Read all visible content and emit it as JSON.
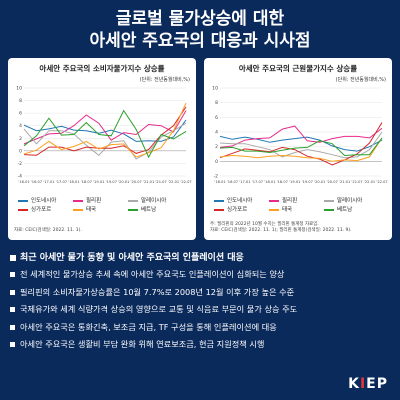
{
  "title": {
    "line1": "글로벌 물가상승에 대한",
    "line2": "아세안 주요국의 대응과 시사점"
  },
  "colors": {
    "background": "#0b2a5c",
    "series": [
      "#1f77b4",
      "#e7298a",
      "#aaaaaa",
      "#d62728",
      "#ff9f1c",
      "#2ca02c"
    ]
  },
  "chart_data": [
    {
      "type": "line",
      "title": "아세안 주요국의 소비자물가지수 상승률",
      "unit": "(단위: 전년동월대비,%)",
      "x": [
        "'16.01",
        "'16.07",
        "'17.01",
        "'17.07",
        "'18.01",
        "'18.07",
        "'19.01",
        "'19.07",
        "'20.01",
        "'20.07",
        "'21.01",
        "'21.07",
        "'22.01",
        "'22.07"
      ],
      "ylim": [
        -4,
        10
      ],
      "yticks": [
        -4,
        -2,
        0,
        2,
        4,
        6,
        8,
        10
      ],
      "legend_position": "bottom",
      "series": [
        {
          "name": "인도네시아",
          "values": [
            4.1,
            3.2,
            3.5,
            3.9,
            3.3,
            3.2,
            2.8,
            3.3,
            2.7,
            1.5,
            1.6,
            1.5,
            2.2,
            4.9
          ]
        },
        {
          "name": "필리핀",
          "values": [
            1.1,
            1.9,
            2.7,
            2.8,
            4.0,
            5.7,
            4.4,
            1.7,
            2.9,
            2.6,
            4.2,
            4.0,
            3.0,
            6.4
          ]
        },
        {
          "name": "말레이시아",
          "values": [
            3.5,
            1.1,
            3.2,
            3.2,
            2.7,
            0.9,
            -0.7,
            1.4,
            1.6,
            -1.3,
            -0.2,
            2.2,
            3.2,
            4.4
          ]
        },
        {
          "name": "싱가포르",
          "values": [
            -0.6,
            -0.7,
            0.6,
            0.6,
            0.0,
            0.6,
            0.4,
            0.4,
            0.8,
            -0.4,
            0.2,
            2.5,
            4.0,
            7.0
          ]
        },
        {
          "name": "태국",
          "values": [
            -0.5,
            0.1,
            1.5,
            0.2,
            0.7,
            1.5,
            0.3,
            1.0,
            1.1,
            -1.0,
            -0.3,
            0.5,
            3.2,
            7.6
          ]
        },
        {
          "name": "베트남",
          "values": [
            0.8,
            2.4,
            5.2,
            2.5,
            2.6,
            4.5,
            2.6,
            2.4,
            6.4,
            3.4,
            -1.0,
            2.6,
            1.9,
            3.1
          ]
        }
      ],
      "source": "자료: CEIC(검색일: 2022. 11. 1)."
    },
    {
      "type": "line",
      "title": "아세안 주요국의 근원물가지수 상승률",
      "unit": "(단위: 전년동월대비,%)",
      "x": [
        "'16.01",
        "'16.07",
        "'17.01",
        "'17.07",
        "'18.01",
        "'18.07",
        "'19.01",
        "'19.07",
        "'20.01",
        "'20.07",
        "'21.01",
        "'21.07",
        "'22.01",
        "'22.07"
      ],
      "ylim": [
        -2,
        10
      ],
      "yticks": [
        -2,
        0,
        2,
        4,
        6,
        8,
        10
      ],
      "legend_position": "bottom",
      "series": [
        {
          "name": "인도네시아",
          "values": [
            3.4,
            3.0,
            3.3,
            3.0,
            2.6,
            2.9,
            3.1,
            3.3,
            2.9,
            2.1,
            1.6,
            1.4,
            2.0,
            2.9
          ]
        },
        {
          "name": "필리핀",
          "values": [
            1.9,
            2.1,
            2.9,
            3.1,
            3.2,
            4.4,
            4.8,
            2.8,
            2.6,
            3.1,
            3.4,
            3.4,
            3.2,
            4.5
          ]
        },
        {
          "name": "말레이시아",
          "values": [
            2.5,
            2.4,
            2.4,
            2.0,
            1.6,
            0.6,
            1.2,
            1.6,
            1.3,
            0.9,
            0.5,
            0.6,
            1.6,
            4.0
          ]
        },
        {
          "name": "싱가포르",
          "values": [
            0.5,
            1.1,
            1.7,
            1.5,
            1.3,
            1.9,
            1.6,
            0.7,
            0.3,
            -0.5,
            0.2,
            1.0,
            2.5,
            5.3
          ]
        },
        {
          "name": "태국",
          "values": [
            0.6,
            0.8,
            0.7,
            0.5,
            0.7,
            0.8,
            0.7,
            0.5,
            0.4,
            0.0,
            0.2,
            0.1,
            0.6,
            3.2
          ]
        },
        {
          "name": "베트남",
          "values": [
            1.8,
            1.9,
            1.4,
            1.4,
            1.2,
            1.5,
            1.8,
            1.9,
            2.8,
            2.4,
            0.8,
            0.9,
            0.9,
            3.2
          ]
        }
      ],
      "source": "주: 필리핀의 2022년 10월 수치는 필리핀 통계청 자료임.\n자료: CEIC(검색일: 2022. 11. 1); 필리핀 통계청(검색일: 2022. 11. 9)."
    }
  ],
  "section": {
    "header": "최근 아세안 물가 동향 및 아세안 주요국의 인플레이션 대응",
    "bullets": [
      "전 세계적인 물가상승 추세 속에 아세안 주요국도 인플레이션이 심화되는 양상",
      "필리핀의 소비자물가상승률은 10월 7.7%로 2008년 12월 이후 가장 높은 수준",
      "국제유가와 세계 식량가격 상승의 영향으로 교통 및 식음료 부문이 물가 상승 주도",
      "아세안 주요국은 통화긴축, 보조금 지급, TF 구성을 통해 인플레이션에 대응",
      "아세안 주요국은 생활비 부담 완화 위해 연료보조금, 현금 지원정책 시행"
    ]
  },
  "logo": {
    "part1": "K",
    "part2": "I",
    "part3": "EP"
  }
}
